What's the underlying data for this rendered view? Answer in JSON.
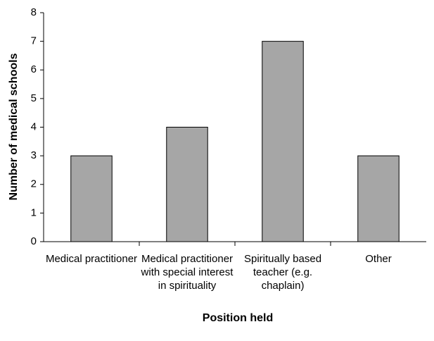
{
  "chart_data": {
    "type": "bar",
    "categories": [
      "Medical practitioner",
      "Medical practitioner with special interest in spirituality",
      "Spiritually based teacher (e.g. chaplain)",
      "Other"
    ],
    "values": [
      3,
      4,
      7,
      3
    ],
    "color": "#a6a6a6",
    "xlabel": "Position held",
    "ylabel": "Number of medical schools",
    "ylim": [
      0,
      8
    ],
    "yticks": [
      0,
      1,
      2,
      3,
      4,
      5,
      6,
      7,
      8
    ],
    "grid": false
  }
}
